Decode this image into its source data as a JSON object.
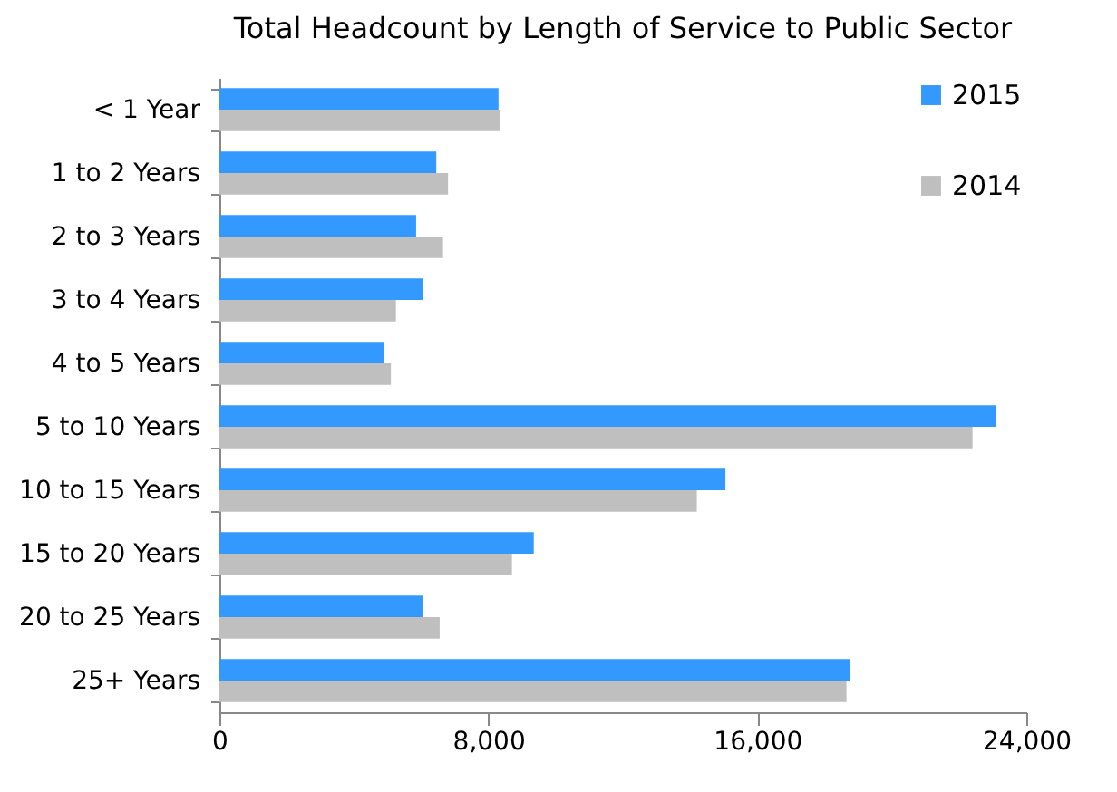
{
  "chart_data": {
    "type": "bar",
    "orientation": "horizontal",
    "title": "Total Headcount by Length of Service to Public Sector",
    "categories": [
      "< 1 Year",
      "1 to 2 Years",
      "2 to 3 Years",
      "3 to 4 Years",
      "4 to 5 Years",
      "5 to 10 Years",
      "10 to 15 Years",
      "15 to 20 Years",
      "20 to 25 Years",
      "25+ Years"
    ],
    "series": [
      {
        "name": "2015",
        "color": "#3399ff",
        "values": [
          8300,
          6450,
          5850,
          6050,
          4900,
          23100,
          15050,
          9350,
          6050,
          18750
        ]
      },
      {
        "name": "2014",
        "color": "#bfbfbf",
        "values": [
          8350,
          6800,
          6650,
          5250,
          5100,
          22400,
          14200,
          8700,
          6550,
          18650
        ]
      }
    ],
    "xlim": [
      0,
      24000
    ],
    "xticks": [
      0,
      {
        "value": 8000,
        "label": "8,000"
      },
      {
        "value": 16000,
        "label": "16,000"
      },
      {
        "value": 24000,
        "label": "24,000"
      }
    ],
    "grid": false,
    "legend": "top right"
  }
}
